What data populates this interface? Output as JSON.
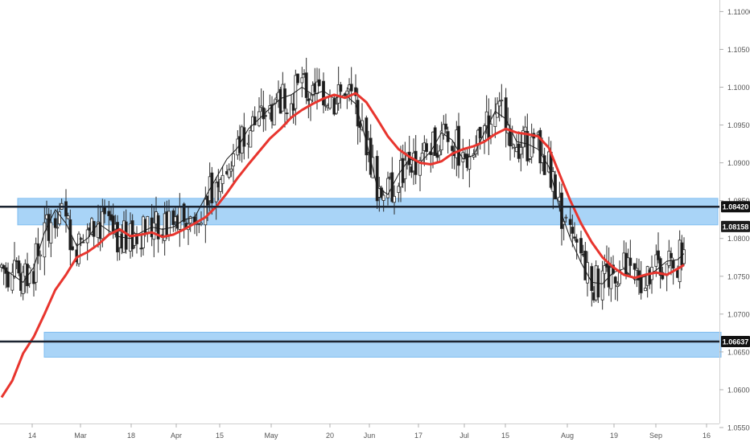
{
  "chart_data": {
    "type": "candlestick",
    "title": "",
    "ylim": [
      1.055,
      1.111
    ],
    "y_ticks": [
      1.11,
      1.105,
      1.1,
      1.095,
      1.09,
      1.085,
      1.08,
      1.075,
      1.07,
      1.065,
      1.06,
      1.055
    ],
    "y_tick_labels": [
      "1.11000",
      "1.10500",
      "1.10000",
      "1.09500",
      "1.09000",
      "1.08500",
      "1.08000",
      "1.07500",
      "1.07000",
      "1.06500",
      "1.06000",
      "1.05500"
    ],
    "x_tick_labels": [
      "14",
      "Mar",
      "18",
      "Apr",
      "15",
      "May",
      "20",
      "Jun",
      "17",
      "Jul",
      "15",
      "Aug",
      "19",
      "Sep",
      "16"
    ],
    "grid": false,
    "levels": [
      {
        "label": "1.08420",
        "value": 1.0842,
        "style": "dark"
      },
      {
        "label": "1.08158",
        "value": 1.08158,
        "style": "light"
      },
      {
        "label": "1.06637",
        "value": 1.06637,
        "style": "dark"
      }
    ],
    "zones": [
      {
        "low": 1.0818,
        "high": 1.0853
      },
      {
        "low": 1.0643,
        "high": 1.0676
      }
    ],
    "colors": {
      "up_candle": "#ffffff",
      "down_candle": "#1b1b1b",
      "candle_outline": "#2a2a2a",
      "fast_ma": "#1a1a1a",
      "slow_ma": "#e8352e",
      "zone_fill": "#a9d4f7",
      "level_line": "#1c2431"
    },
    "slow_ma_points": [
      [
        0,
        1.059
      ],
      [
        5,
        1.0612
      ],
      [
        10,
        1.0648
      ],
      [
        15,
        1.067
      ],
      [
        20,
        1.07
      ],
      [
        25,
        1.0732
      ],
      [
        30,
        1.0752
      ],
      [
        35,
        1.0775
      ],
      [
        40,
        1.0782
      ],
      [
        45,
        1.0792
      ],
      [
        50,
        1.0805
      ],
      [
        55,
        1.0812
      ],
      [
        60,
        1.0803
      ],
      [
        65,
        1.0805
      ],
      [
        70,
        1.0808
      ],
      [
        75,
        1.0802
      ],
      [
        80,
        1.0805
      ],
      [
        85,
        1.0812
      ],
      [
        90,
        1.082
      ],
      [
        95,
        1.0828
      ],
      [
        100,
        1.0842
      ],
      [
        105,
        1.086
      ],
      [
        110,
        1.088
      ],
      [
        115,
        1.0898
      ],
      [
        120,
        1.0915
      ],
      [
        125,
        1.0932
      ],
      [
        130,
        1.0945
      ],
      [
        135,
        1.096
      ],
      [
        140,
        1.097
      ],
      [
        145,
        1.0978
      ],
      [
        150,
        1.0985
      ],
      [
        155,
        1.099
      ],
      [
        160,
        1.0986
      ],
      [
        165,
        1.0992
      ],
      [
        170,
        1.098
      ],
      [
        175,
        1.0958
      ],
      [
        180,
        1.0935
      ],
      [
        185,
        1.0918
      ],
      [
        190,
        1.0908
      ],
      [
        195,
        1.09
      ],
      [
        200,
        1.0898
      ],
      [
        205,
        1.0902
      ],
      [
        210,
        1.0912
      ],
      [
        215,
        1.0918
      ],
      [
        220,
        1.0922
      ],
      [
        225,
        1.0928
      ],
      [
        230,
        1.0938
      ],
      [
        235,
        1.0945
      ],
      [
        240,
        1.094
      ],
      [
        245,
        1.0938
      ],
      [
        250,
        1.0935
      ],
      [
        255,
        1.092
      ],
      [
        260,
        1.0885
      ],
      [
        265,
        1.085
      ],
      [
        270,
        1.082
      ],
      [
        275,
        1.0795
      ],
      [
        280,
        1.0775
      ],
      [
        285,
        1.0762
      ],
      [
        290,
        1.0752
      ],
      [
        295,
        1.0748
      ],
      [
        300,
        1.0752
      ],
      [
        305,
        1.0755
      ],
      [
        310,
        1.0752
      ],
      [
        315,
        1.076
      ],
      [
        318,
        1.0765
      ]
    ],
    "fast_ma_points": [
      [
        0,
        1.0762
      ],
      [
        5,
        1.0752
      ],
      [
        10,
        1.0742
      ],
      [
        15,
        1.0762
      ],
      [
        20,
        1.0808
      ],
      [
        25,
        1.0838
      ],
      [
        30,
        1.082
      ],
      [
        35,
        1.079
      ],
      [
        40,
        1.08
      ],
      [
        45,
        1.082
      ],
      [
        50,
        1.081
      ],
      [
        55,
        1.0802
      ],
      [
        60,
        1.08
      ],
      [
        65,
        1.0808
      ],
      [
        70,
        1.0815
      ],
      [
        75,
        1.0812
      ],
      [
        80,
        1.0815
      ],
      [
        85,
        1.0825
      ],
      [
        90,
        1.0828
      ],
      [
        95,
        1.0855
      ],
      [
        100,
        1.088
      ],
      [
        105,
        1.0905
      ],
      [
        110,
        1.092
      ],
      [
        115,
        1.0945
      ],
      [
        120,
        1.0958
      ],
      [
        125,
        1.0972
      ],
      [
        130,
        1.0985
      ],
      [
        135,
        1.099
      ],
      [
        140,
        1.1
      ],
      [
        145,
        1.099
      ],
      [
        150,
        1.0995
      ],
      [
        155,
        1.0985
      ],
      [
        160,
        1.099
      ],
      [
        165,
        1.0978
      ],
      [
        170,
        1.0928
      ],
      [
        175,
        1.0868
      ],
      [
        180,
        1.0858
      ],
      [
        185,
        1.0885
      ],
      [
        190,
        1.0905
      ],
      [
        195,
        1.09
      ],
      [
        200,
        1.0915
      ],
      [
        205,
        1.094
      ],
      [
        210,
        1.093
      ],
      [
        215,
        1.0905
      ],
      [
        220,
        1.091
      ],
      [
        225,
        1.094
      ],
      [
        230,
        1.0968
      ],
      [
        235,
        1.0958
      ],
      [
        240,
        1.0928
      ],
      [
        245,
        1.0925
      ],
      [
        250,
        1.0918
      ],
      [
        255,
        1.0895
      ],
      [
        260,
        1.084
      ],
      [
        265,
        1.08
      ],
      [
        270,
        1.0768
      ],
      [
        275,
        1.0742
      ],
      [
        280,
        1.074
      ],
      [
        285,
        1.0755
      ],
      [
        290,
        1.076
      ],
      [
        295,
        1.0745
      ],
      [
        300,
        1.075
      ],
      [
        305,
        1.0758
      ],
      [
        310,
        1.077
      ],
      [
        315,
        1.0772
      ],
      [
        318,
        1.078
      ]
    ]
  }
}
